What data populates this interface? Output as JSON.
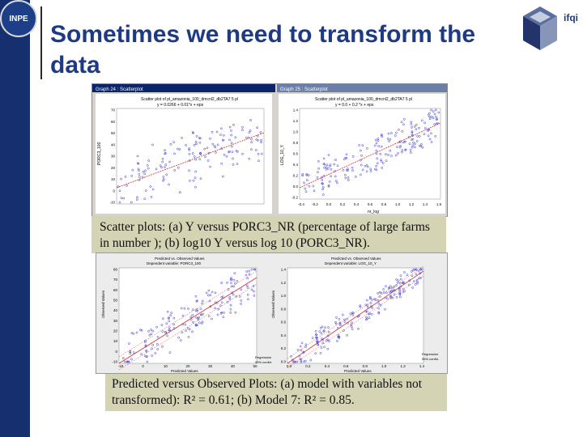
{
  "title": "Sometimes we need to transform the data",
  "logo_text": "INPE",
  "corner_label": "ifqi",
  "top_figure": {
    "left": {
      "window_title": "Graph 24 : Scatterplot",
      "plot_title": "Scatter plot of pl_amazonia_100_dmcnl2_db2TA7 5 pl",
      "subtitle": "y = 0.0266 + 0.01*x + eps",
      "ylabel": "PORC3_100",
      "yticks": [
        "70",
        "60",
        "50",
        "40",
        "30",
        "20",
        "10",
        "0",
        "-10"
      ]
    },
    "right": {
      "window_title": "Graph 25 : Scatterplot",
      "plot_title": "Scatter plot of pl_amazonia_100_dmcnl2_db2TA7 5 pl",
      "subtitle": "y = 0.0 + 0.2 *x + eps",
      "ylabel": "LOG_10_Y",
      "yticks": [
        "1.4",
        "1.2",
        "1.0",
        "0.8",
        "0.6",
        "0.4",
        "0.2",
        "0.0",
        "-0.2"
      ],
      "xticks": [
        "-0.4",
        "-0.2",
        "0.0",
        "0.2",
        "0.4",
        "0.6",
        "0.8",
        "1.0",
        "1.2",
        "1.4",
        "1.6"
      ],
      "xlabel": "nr_log"
    },
    "caption": "Scatter plots: (a) Y versus PORC3_NR (percentage of large farms in number ); (b) log10 Y versus log 10 (PORC3_NR)."
  },
  "bottom_figure": {
    "left": {
      "title1": "Predicted vs. Observed Values",
      "title2": "Dependent variable: PORC3_100",
      "ylabel": "Observed Values",
      "xlabel": "Predicted Values",
      "yticks": [
        "80",
        "70",
        "60",
        "50",
        "40",
        "30",
        "20",
        "10",
        "0",
        "-10"
      ],
      "xticks": [
        "-10",
        "0",
        "10",
        "20",
        "30",
        "40",
        "50"
      ],
      "legend": [
        "Regression",
        "95% confid."
      ]
    },
    "right": {
      "title1": "Predicted vs. Observed Values",
      "title2": "Dependent variable: LOG_10_Y",
      "ylabel": "Observed Values",
      "xlabel": "Predicted Values",
      "yticks": [
        "1.4",
        "1.2",
        "1.0",
        "0.8",
        "0.6",
        "0.4",
        "0.2",
        "0.0"
      ],
      "xticks": [
        "0.0",
        "0.2",
        "0.4",
        "0.6",
        "0.8",
        "1.0",
        "1.2",
        "1.4"
      ],
      "legend": [
        "Regression",
        "95% confid."
      ]
    },
    "caption_line1": "Predicted versus Observed Plots: (a) model with variables not",
    "caption_prefix": "transformed): ",
    "r2_a": "R² = 0.61",
    "caption_mid": "; (b) Model 7: ",
    "r2_b": "R² = 0.85",
    "caption_end": "."
  },
  "colors": {
    "left_bar": "#16306f",
    "title": "#1e3a82",
    "points": "#3a3ad0",
    "regression_line": "#d03030",
    "caption_bg": "#d4d3b3"
  }
}
